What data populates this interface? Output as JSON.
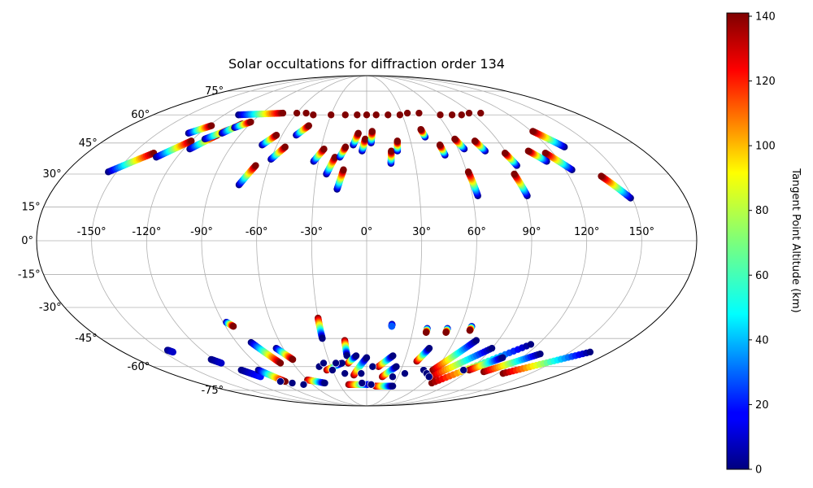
{
  "chart_data": {
    "type": "scatter",
    "projection": "mollweide",
    "title": "Solar occultations for diffraction order 134",
    "grid": true,
    "longitude_tick_labels": [
      "-150°",
      "-120°",
      "-90°",
      "-60°",
      "-30°",
      "0°",
      "30°",
      "60°",
      "90°",
      "120°",
      "150°"
    ],
    "longitude_ticks": [
      -150,
      -120,
      -90,
      -60,
      -30,
      0,
      30,
      60,
      90,
      120,
      150
    ],
    "latitude_tick_labels": [
      "-75°",
      "-60°",
      "-45°",
      "-30°",
      "-15°",
      "0°",
      "15°",
      "30°",
      "45°",
      "60°",
      "75°"
    ],
    "latitude_ticks": [
      -75,
      -60,
      -45,
      -30,
      -15,
      0,
      15,
      30,
      45,
      60,
      75
    ],
    "colorbar": {
      "label": "Tangent Point Altitude (km)",
      "range": [
        0,
        141
      ],
      "tick_labels": [
        "0",
        "20",
        "40",
        "60",
        "80",
        "100",
        "120",
        "140"
      ],
      "ticks": [
        0,
        20,
        40,
        60,
        80,
        100,
        120,
        140
      ],
      "colormap": "jet"
    },
    "tracks": [
      {
        "start": [
          -155,
          31
        ],
        "end": [
          -137,
          40
        ],
        "alt": [
          0,
          141
        ]
      },
      {
        "start": [
          -133,
          38
        ],
        "end": [
          -120,
          46
        ],
        "alt": [
          0,
          141
        ]
      },
      {
        "start": [
          -128,
          50
        ],
        "end": [
          -118,
          54
        ],
        "alt": [
          0,
          141
        ]
      },
      {
        "start": [
          -116,
          42
        ],
        "end": [
          -106,
          49
        ],
        "alt": [
          0,
          141
        ]
      },
      {
        "start": [
          -112,
          47
        ],
        "end": [
          -101,
          52
        ],
        "alt": [
          0,
          141
        ]
      },
      {
        "start": [
          -104,
          50
        ],
        "end": [
          -96,
          55
        ],
        "alt": [
          0,
          141
        ]
      },
      {
        "start": [
          -99,
          53
        ],
        "end": [
          -91,
          56
        ],
        "alt": [
          0,
          141
        ]
      },
      {
        "start": [
          -108,
          60
        ],
        "end": [
          -72,
          61
        ],
        "alt": [
          0,
          141
        ]
      },
      {
        "start": [
          -74,
          25
        ],
        "end": [
          -68,
          34
        ],
        "alt": [
          0,
          141
        ]
      },
      {
        "start": [
          -70,
          44
        ],
        "end": [
          -64,
          49
        ],
        "alt": [
          0,
          141
        ]
      },
      {
        "start": [
          -60,
          37
        ],
        "end": [
          -54,
          43
        ],
        "alt": [
          0,
          141
        ]
      },
      {
        "start": [
          -50,
          49
        ],
        "end": [
          -44,
          54
        ],
        "alt": [
          0,
          141
        ]
      },
      {
        "start": [
          -33,
          36
        ],
        "end": [
          -28,
          42
        ],
        "alt": [
          0,
          141
        ]
      },
      {
        "start": [
          -24,
          30
        ],
        "end": [
          -20,
          38
        ],
        "alt": [
          0,
          141
        ]
      },
      {
        "start": [
          -17,
          23
        ],
        "end": [
          -14,
          32
        ],
        "alt": [
          0,
          141
        ]
      },
      {
        "start": [
          -17,
          38
        ],
        "end": [
          -14,
          43
        ],
        "alt": [
          0,
          141
        ]
      },
      {
        "start": [
          -9,
          44
        ],
        "end": [
          -6,
          50
        ],
        "alt": [
          0,
          141
        ]
      },
      {
        "start": [
          -3,
          41
        ],
        "end": [
          -1,
          47
        ],
        "alt": [
          0,
          141
        ]
      },
      {
        "start": [
          3,
          45
        ],
        "end": [
          4,
          51
        ],
        "alt": [
          0,
          141
        ]
      },
      {
        "start": [
          15,
          35
        ],
        "end": [
          16,
          41
        ],
        "alt": [
          0,
          141
        ]
      },
      {
        "start": [
          20,
          41
        ],
        "end": [
          21,
          46
        ],
        "alt": [
          0,
          141
        ]
      },
      {
        "start": [
          50,
          39
        ],
        "end": [
          49,
          44
        ],
        "alt": [
          0,
          141
        ]
      },
      {
        "start": [
          63,
          20
        ],
        "end": [
          61,
          31
        ],
        "alt": [
          0,
          141
        ]
      },
      {
        "start": [
          64,
          42
        ],
        "end": [
          61,
          47
        ],
        "alt": [
          0,
          141
        ]
      },
      {
        "start": [
          77,
          41
        ],
        "end": [
          74,
          46
        ],
        "alt": [
          0,
          141
        ]
      },
      {
        "start": [
          91,
          20
        ],
        "end": [
          88,
          30
        ],
        "alt": [
          0,
          141
        ]
      },
      {
        "start": [
          92,
          34
        ],
        "end": [
          89,
          40
        ],
        "alt": [
          0,
          141
        ]
      },
      {
        "start": [
          124,
          32
        ],
        "end": [
          115,
          40
        ],
        "alt": [
          0,
          141
        ]
      },
      {
        "start": [
          149,
          19
        ],
        "end": [
          139,
          29
        ],
        "alt": [
          0,
          141
        ]
      },
      {
        "start": [
          131,
          43
        ],
        "end": [
          121,
          51
        ],
        "alt": [
          0,
          141
        ]
      },
      {
        "start": [
          112,
          36
        ],
        "end": [
          105,
          41
        ],
        "alt": [
          0,
          141
        ]
      },
      {
        "start": [
          41,
          48
        ],
        "end": [
          40,
          52
        ],
        "alt": [
          0,
          141
        ]
      },
      {
        "start": [
          -145,
          -51
        ],
        "end": [
          -143,
          -52
        ],
        "alt": [
          0,
          10
        ]
      },
      {
        "start": [
          -122,
          -56
        ],
        "end": [
          -118,
          -58
        ],
        "alt": [
          0,
          10
        ]
      },
      {
        "start": [
          -110,
          -62
        ],
        "end": [
          -102,
          -66
        ],
        "alt": [
          0,
          20
        ]
      },
      {
        "start": [
          -88,
          -37
        ],
        "end": [
          -85,
          -39
        ],
        "alt": [
          0,
          141
        ]
      },
      {
        "start": [
          -95,
          -62
        ],
        "end": [
          -85,
          -69
        ],
        "alt": [
          0,
          141
        ]
      },
      {
        "start": [
          -80,
          -47
        ],
        "end": [
          -70,
          -58
        ],
        "alt": [
          0,
          141
        ]
      },
      {
        "start": [
          -65,
          -50
        ],
        "end": [
          -58,
          -56
        ],
        "alt": [
          0,
          141
        ]
      },
      {
        "start": [
          -30,
          -35
        ],
        "end": [
          -30,
          -45
        ],
        "alt": [
          141,
          0
        ]
      },
      {
        "start": [
          -15,
          -46
        ],
        "end": [
          -15,
          -54
        ],
        "alt": [
          141,
          0
        ]
      },
      {
        "start": [
          -15,
          -58
        ],
        "end": [
          -8,
          -54
        ],
        "alt": [
          141,
          0
        ]
      },
      {
        "start": [
          -12,
          -65
        ],
        "end": [
          0,
          -55
        ],
        "alt": [
          141,
          0
        ]
      },
      {
        "start": [
          16,
          -38
        ],
        "end": [
          16,
          -39
        ],
        "alt": [
          0,
          30
        ]
      },
      {
        "start": [
          10,
          -60
        ],
        "end": [
          20,
          -54
        ],
        "alt": [
          141,
          0
        ]
      },
      {
        "start": [
          15,
          -66
        ],
        "end": [
          25,
          -60
        ],
        "alt": [
          141,
          0
        ]
      },
      {
        "start": [
          40,
          -57
        ],
        "end": [
          45,
          -50
        ],
        "alt": [
          141,
          0
        ]
      },
      {
        "start": [
          39,
          -40
        ],
        "end": [
          39,
          -42
        ],
        "alt": [
          0,
          141
        ]
      },
      {
        "start": [
          52,
          -40
        ],
        "end": [
          52,
          -42
        ],
        "alt": [
          0,
          141
        ]
      },
      {
        "start": [
          58,
          -62
        ],
        "end": [
          75,
          -46
        ],
        "alt": [
          141,
          0
        ]
      },
      {
        "start": [
          62,
          -66
        ],
        "end": [
          90,
          -50
        ],
        "alt": [
          141,
          0
        ]
      },
      {
        "start": [
          70,
          -70
        ],
        "end": [
          115,
          -48
        ],
        "alt": [
          141,
          0
        ]
      },
      {
        "start": [
          90,
          -62
        ],
        "end": [
          105,
          -55
        ],
        "alt": [
          141,
          0
        ]
      },
      {
        "start": [
          105,
          -63
        ],
        "end": [
          130,
          -53
        ],
        "alt": [
          141,
          0
        ]
      },
      {
        "start": [
          125,
          -64
        ],
        "end": [
          165,
          -52
        ],
        "alt": [
          141,
          0
        ]
      },
      {
        "start": [
          67,
          -39
        ],
        "end": [
          67,
          -41
        ],
        "alt": [
          0,
          141
        ]
      },
      {
        "start": [
          -60,
          -68
        ],
        "end": [
          -45,
          -70
        ],
        "alt": [
          141,
          0
        ]
      },
      {
        "start": [
          -20,
          -71
        ],
        "end": [
          5,
          -71
        ],
        "alt": [
          141,
          0
        ]
      },
      {
        "start": [
          10,
          -72
        ],
        "end": [
          30,
          -72
        ],
        "alt": [
          141,
          0
        ]
      },
      {
        "start": [
          -35,
          -62
        ],
        "end": [
          -20,
          -58
        ],
        "alt": [
          141,
          0
        ]
      }
    ],
    "points": [
      {
        "lon": -45,
        "lat": 60,
        "alt": 141
      },
      {
        "lon": -30,
        "lat": 60,
        "alt": 141
      },
      {
        "lon": -18,
        "lat": 60,
        "alt": 141
      },
      {
        "lon": -8,
        "lat": 60,
        "alt": 141
      },
      {
        "lon": 0,
        "lat": 60,
        "alt": 141
      },
      {
        "lon": 8,
        "lat": 60,
        "alt": 141
      },
      {
        "lon": 18,
        "lat": 60,
        "alt": 141
      },
      {
        "lon": 28,
        "lat": 60,
        "alt": 141
      },
      {
        "lon": 35,
        "lat": 61,
        "alt": 141
      },
      {
        "lon": 45,
        "lat": 61,
        "alt": 141
      },
      {
        "lon": 62,
        "lat": 60,
        "alt": 141
      },
      {
        "lon": 72,
        "lat": 60,
        "alt": 141
      },
      {
        "lon": 80,
        "lat": 60,
        "alt": 141
      },
      {
        "lon": 88,
        "lat": 61,
        "alt": 141
      },
      {
        "lon": 98,
        "lat": 61,
        "alt": 141
      },
      {
        "lon": -60,
        "lat": 61,
        "alt": 141
      },
      {
        "lon": -52,
        "lat": 61,
        "alt": 141
      },
      {
        "lon": -90,
        "lat": -69,
        "alt": 0
      },
      {
        "lon": -80,
        "lat": -70,
        "alt": 0
      },
      {
        "lon": -70,
        "lat": -71,
        "alt": 0
      },
      {
        "lon": -40,
        "lat": -60,
        "alt": 0
      },
      {
        "lon": -35,
        "lat": -58,
        "alt": 0
      },
      {
        "lon": -25,
        "lat": -58,
        "alt": 0
      },
      {
        "lon": -30,
        "lat": -62,
        "alt": 0
      },
      {
        "lon": -20,
        "lat": -64,
        "alt": 0
      },
      {
        "lon": -5,
        "lat": -64,
        "alt": 0
      },
      {
        "lon": 5,
        "lat": -60,
        "alt": 0
      },
      {
        "lon": 25,
        "lat": -66,
        "alt": 0
      },
      {
        "lon": 35,
        "lat": -64,
        "alt": 0
      },
      {
        "lon": 50,
        "lat": -62,
        "alt": 0
      },
      {
        "lon": 55,
        "lat": -64,
        "alt": 0
      },
      {
        "lon": 60,
        "lat": -66,
        "alt": 0
      },
      {
        "lon": 85,
        "lat": -62,
        "alt": 0
      },
      {
        "lon": 5,
        "lat": -71,
        "alt": 0
      },
      {
        "lon": -5,
        "lat": -70,
        "alt": 0
      }
    ]
  }
}
